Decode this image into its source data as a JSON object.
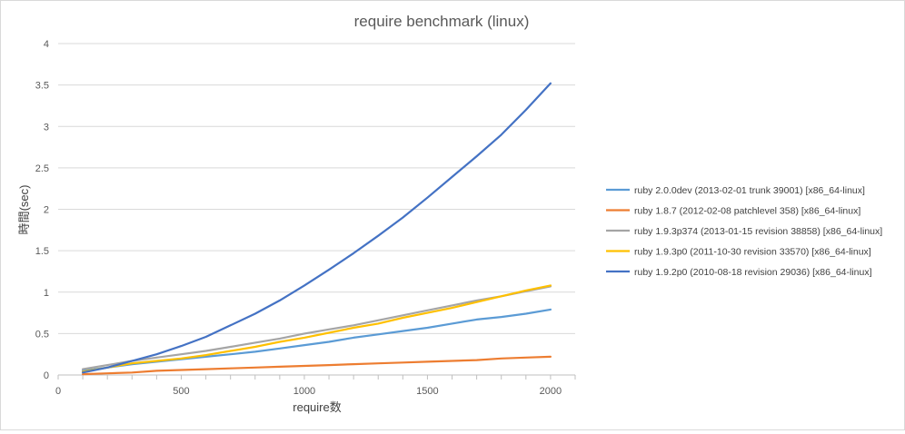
{
  "chart_data": {
    "type": "line",
    "title": "require benchmark (linux)",
    "xlabel": "require数",
    "ylabel": "時間(sec)",
    "xlim": [
      0,
      2100
    ],
    "ylim": [
      0,
      4
    ],
    "x_ticks": [
      0,
      500,
      1000,
      1500,
      2000
    ],
    "y_ticks": [
      0,
      0.5,
      1,
      1.5,
      2,
      2.5,
      3,
      3.5,
      4
    ],
    "x_tick_labels": [
      "0",
      "500",
      "1000",
      "1500",
      "2000"
    ],
    "y_tick_labels": [
      "0",
      "0.5",
      "1",
      "1.5",
      "2",
      "2.5",
      "3",
      "3.5",
      "4"
    ],
    "grid": "horizontal",
    "legend_position": "right",
    "x": [
      100,
      200,
      300,
      400,
      500,
      600,
      700,
      800,
      900,
      1000,
      1100,
      1200,
      1300,
      1400,
      1500,
      1600,
      1700,
      1800,
      1900,
      2000
    ],
    "series": [
      {
        "name": "ruby 2.0.0dev (2013-02-01 trunk 39001) [x86_64-linux]",
        "color": "#5b9bd5",
        "values": [
          0.05,
          0.09,
          0.13,
          0.16,
          0.19,
          0.22,
          0.25,
          0.28,
          0.32,
          0.36,
          0.4,
          0.45,
          0.49,
          0.53,
          0.57,
          0.62,
          0.67,
          0.7,
          0.74,
          0.79
        ]
      },
      {
        "name": "ruby 1.8.7 (2012-02-08 patchlevel 358) [x86_64-linux]",
        "color": "#ed7d31",
        "values": [
          0.01,
          0.02,
          0.03,
          0.05,
          0.06,
          0.07,
          0.08,
          0.09,
          0.1,
          0.11,
          0.12,
          0.13,
          0.14,
          0.15,
          0.16,
          0.17,
          0.18,
          0.2,
          0.21,
          0.22
        ]
      },
      {
        "name": "ruby 1.9.3p374 (2013-01-15 revision 38858) [x86_64-linux]",
        "color": "#a5a5a5",
        "values": [
          0.07,
          0.12,
          0.17,
          0.21,
          0.25,
          0.29,
          0.34,
          0.39,
          0.44,
          0.5,
          0.55,
          0.6,
          0.66,
          0.72,
          0.78,
          0.84,
          0.9,
          0.95,
          1.01,
          1.07
        ]
      },
      {
        "name": "ruby 1.9.3p0 (2011-10-30 revision 33570) [x86_64-linux]",
        "color": "#ffc000",
        "values": [
          0.04,
          0.09,
          0.14,
          0.17,
          0.2,
          0.24,
          0.29,
          0.34,
          0.4,
          0.45,
          0.51,
          0.57,
          0.62,
          0.69,
          0.75,
          0.81,
          0.88,
          0.95,
          1.02,
          1.08
        ]
      },
      {
        "name": "ruby 1.9.2p0 (2010-08-18 revision 29036) [x86_64-linux]",
        "color": "#4472c4",
        "values": [
          0.03,
          0.09,
          0.17,
          0.25,
          0.35,
          0.46,
          0.6,
          0.74,
          0.9,
          1.08,
          1.27,
          1.47,
          1.68,
          1.9,
          2.14,
          2.39,
          2.64,
          2.9,
          3.2,
          3.52
        ]
      }
    ]
  }
}
